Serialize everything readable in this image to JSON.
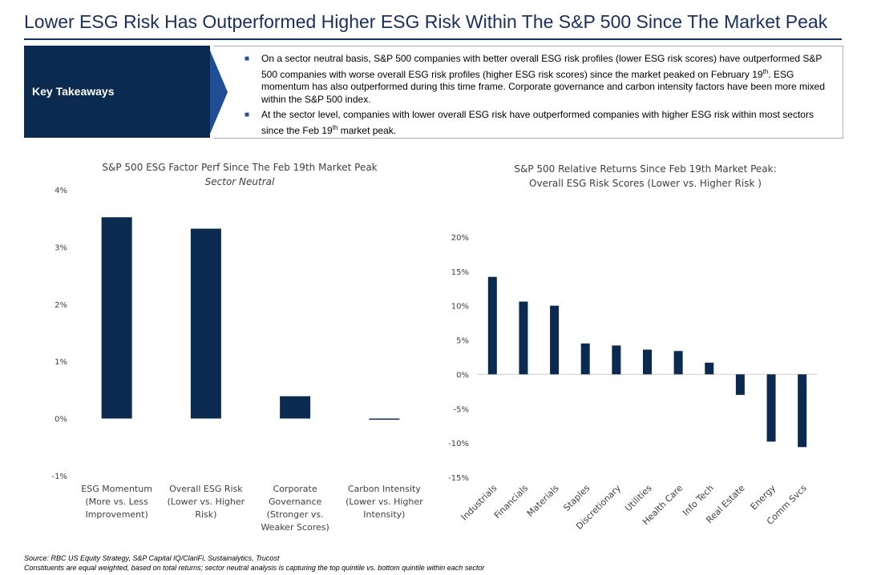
{
  "title": "Lower ESG Risk Has Outperformed Higher ESG Risk Within The S&P 500 Since The Market Peak",
  "takeaways": {
    "label": "Key Takeaways",
    "bullet1": {
      "before": "On a sector neutral basis, S&P 500 companies with better overall ESG risk profiles (lower ESG risk scores) have outperformed S&P 500 companies with worse overall ESG risk profiles (higher ESG risk scores) since the market peaked on February 19",
      "sup": "th",
      "after": ". ESG momentum has also outperformed during this time frame. Corporate governance and carbon intensity factors have been more mixed within the S&P 500 index."
    },
    "bullet2": {
      "before": "At the sector level, companies with lower overall ESG risk have outperformed companies with higher ESG risk within most sectors since the Feb 19",
      "sup": "th",
      "after": " market peak."
    }
  },
  "chart_data": [
    {
      "type": "bar",
      "title": "S&P 500 ESG Factor Perf Since The Feb 19th Market Peak",
      "subtitle": "Sector Neutral",
      "categories": [
        [
          "ESG Momentum",
          "(More vs. Less",
          "Improvement)"
        ],
        [
          "Overall ESG Risk",
          "(Lower vs. Higher",
          "Risk)"
        ],
        [
          "Corporate",
          "Governance",
          "(Stronger vs.",
          "Weaker Scores)"
        ],
        [
          "Carbon Intensity",
          "(Lower vs. Higher",
          "Intensity)"
        ]
      ],
      "values": [
        3.52,
        3.32,
        0.39,
        -0.02
      ],
      "ylim": [
        -1,
        4
      ],
      "yticks": [
        4,
        3,
        2,
        1,
        0,
        -1
      ],
      "ytick_labels": [
        "4%",
        "3%",
        "2%",
        "1%",
        "0%",
        "-1%"
      ],
      "color": "#0b2a4f",
      "grid": false
    },
    {
      "type": "bar",
      "title": "S&P 500 Relative Returns Since Feb 19th Market Peak:",
      "subtitle": "Overall ESG Risk Scores (Lower vs. Higher Risk )",
      "categories": [
        "Industrials",
        "Financials",
        "Materials",
        "Staples",
        "Discretionary",
        "Utilities",
        "Health Care",
        "Info Tech",
        "Real Estate",
        "Energy",
        "Comm Svcs"
      ],
      "values": [
        14.2,
        10.6,
        10.0,
        4.5,
        4.2,
        3.6,
        3.4,
        1.7,
        -3.0,
        -9.8,
        -10.6
      ],
      "ylim": [
        -15,
        20
      ],
      "yticks": [
        20,
        15,
        10,
        5,
        0,
        -5,
        -10,
        -15
      ],
      "ytick_labels": [
        "20%",
        "15%",
        "10%",
        "5%",
        "0%",
        "-5%",
        "-10%",
        "-15%"
      ],
      "color": "#0b2a4f",
      "grid": false
    }
  ],
  "footer": {
    "line1": "Source: RBC US Equity Strategy, S&P Capital IQ/ClariFi, Sustainalytics, Trucost",
    "line2": "Constituents are equal weighted, based on total returns; sector neutral analysis is capturing the top quintile vs. bottom quintile within each sector"
  }
}
